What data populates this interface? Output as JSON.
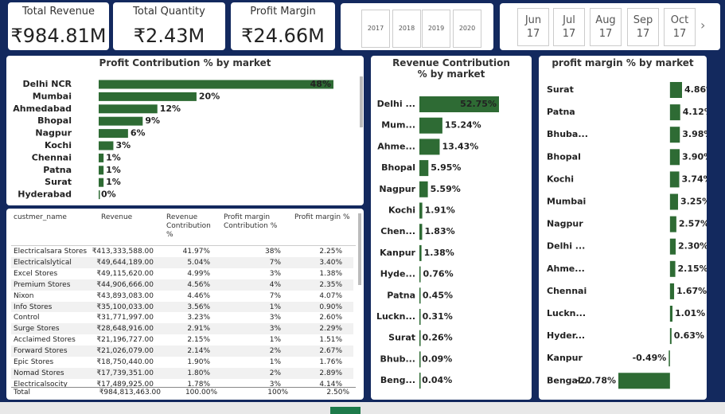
{
  "cards": [
    {
      "label": "Total Revenue",
      "value": "₹984.81M"
    },
    {
      "label": "Total Quantity",
      "value": "₹2.43M"
    },
    {
      "label": "Profit Margin",
      "value": "₹24.66M"
    }
  ],
  "year_slicer": {
    "items": [
      "2017",
      "2018",
      "2019",
      "2020"
    ]
  },
  "month_slicer": {
    "items": [
      {
        "month": "Jun",
        "year": "17"
      },
      {
        "month": "Jul",
        "year": "17"
      },
      {
        "month": "Aug",
        "year": "17"
      },
      {
        "month": "Sep",
        "year": "17"
      },
      {
        "month": "Oct",
        "year": "17"
      }
    ]
  },
  "chart_data": [
    {
      "type": "bar",
      "orientation": "horizontal",
      "title": "Profit Contribution % by market",
      "color": "#2e6b34",
      "categories": [
        "Delhi NCR",
        "Mumbai",
        "Ahmedabad",
        "Bhopal",
        "Nagpur",
        "Kochi",
        "Chennai",
        "Patna",
        "Surat",
        "Hyderabad"
      ],
      "values": [
        48,
        20,
        12,
        9,
        6,
        3,
        1,
        1,
        1,
        0
      ],
      "value_labels": [
        "48%",
        "20%",
        "12%",
        "9%",
        "6%",
        "3%",
        "1%",
        "1%",
        "1%",
        "0%"
      ]
    },
    {
      "type": "bar",
      "orientation": "horizontal",
      "title": "Revenue Contribution % by market",
      "color": "#2e6b34",
      "categories": [
        "Delhi ...",
        "Mum...",
        "Ahme...",
        "Bhopal",
        "Nagpur",
        "Kochi",
        "Chen...",
        "Kanpur",
        "Hyde...",
        "Patna",
        "Luckn...",
        "Surat",
        "Bhub...",
        "Beng..."
      ],
      "values": [
        52.75,
        15.24,
        13.43,
        5.95,
        5.59,
        1.91,
        1.83,
        1.38,
        0.76,
        0.45,
        0.31,
        0.26,
        0.09,
        0.04
      ],
      "value_labels": [
        "52.75%",
        "15.24%",
        "13.43%",
        "5.95%",
        "5.59%",
        "1.91%",
        "1.83%",
        "1.38%",
        "0.76%",
        "0.45%",
        "0.31%",
        "0.26%",
        "0.09%",
        "0.04%"
      ]
    },
    {
      "type": "bar",
      "orientation": "horizontal",
      "title": "profit margin % by market",
      "color": "#2e6b34",
      "categories": [
        "Surat",
        "Patna",
        "Bhuba...",
        "Bhopal",
        "Kochi",
        "Mumbai",
        "Nagpur",
        "Delhi ...",
        "Ahme...",
        "Chennai",
        "Luckn...",
        "Hyder...",
        "Kanpur",
        "Bengal..."
      ],
      "values": [
        4.86,
        4.12,
        3.98,
        3.9,
        3.74,
        3.25,
        2.57,
        2.3,
        2.15,
        1.67,
        1.01,
        0.63,
        -0.49,
        -20.78
      ],
      "value_labels": [
        "4.86%",
        "4.12%",
        "3.98%",
        "3.90%",
        "3.74%",
        "3.25%",
        "2.57%",
        "2.30%",
        "2.15%",
        "1.67%",
        "1.01%",
        "0.63%",
        "-0.49%",
        "-20.78%"
      ]
    }
  ],
  "table": {
    "columns": [
      "custmer_name",
      "Revenue",
      "Revenue Contribution %",
      "Profit margin Contribution %",
      "Profit margin %"
    ],
    "rows": [
      [
        "Electricalsara Stores",
        "₹413,333,588.00",
        "41.97%",
        "38%",
        "2.25%"
      ],
      [
        "Electricalslytical",
        "₹49,644,189.00",
        "5.04%",
        "7%",
        "3.40%"
      ],
      [
        "Excel Stores",
        "₹49,115,620.00",
        "4.99%",
        "3%",
        "1.38%"
      ],
      [
        "Premium Stores",
        "₹44,906,666.00",
        "4.56%",
        "4%",
        "2.35%"
      ],
      [
        "Nixon",
        "₹43,893,083.00",
        "4.46%",
        "7%",
        "4.07%"
      ],
      [
        "Info Stores",
        "₹35,100,033.00",
        "3.56%",
        "1%",
        "0.90%"
      ],
      [
        "Control",
        "₹31,771,997.00",
        "3.23%",
        "3%",
        "2.60%"
      ],
      [
        "Surge Stores",
        "₹28,648,916.00",
        "2.91%",
        "3%",
        "2.29%"
      ],
      [
        "Acclaimed Stores",
        "₹21,196,727.00",
        "2.15%",
        "1%",
        "1.51%"
      ],
      [
        "Forward Stores",
        "₹21,026,079.00",
        "2.14%",
        "2%",
        "2.67%"
      ],
      [
        "Epic Stores",
        "₹18,750,440.00",
        "1.90%",
        "1%",
        "1.76%"
      ],
      [
        "Nomad Stores",
        "₹17,739,351.00",
        "1.80%",
        "2%",
        "2.89%"
      ],
      [
        "Electricalsocity",
        "₹17,489,925.00",
        "1.78%",
        "3%",
        "4.14%"
      ]
    ],
    "total": [
      "Total",
      "₹984,813,463.00",
      "100.00%",
      "100%",
      "2.50%"
    ]
  }
}
